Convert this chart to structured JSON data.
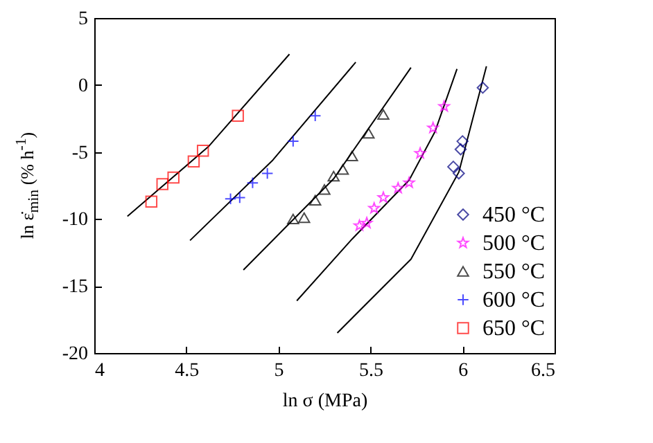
{
  "chart_data": {
    "type": "scatter",
    "xlabel": "ln σ (MPa)",
    "ylabel": "ln ε̇$_{min}$ (% h$^{-1}$)",
    "xlim": [
      4,
      6.5
    ],
    "xticks": [
      {
        "value": 4,
        "label": "4"
      },
      4.5,
      {
        "value": 5,
        "label": "5"
      },
      5.5,
      {
        "value": 6,
        "label": "6"
      },
      6.5
    ],
    "ylim": [
      -20,
      5
    ],
    "yticks": [
      -20,
      -15,
      -10,
      -5,
      0,
      5
    ],
    "grid": false,
    "legend": "bottom right",
    "series": [
      {
        "name": "450 °C",
        "color": "#000080",
        "marker": "diamond",
        "x": [
          6.11,
          6.0,
          5.99,
          5.95,
          5.98
        ],
        "values": [
          -0.2,
          -4.2,
          -4.8,
          -6.1,
          -6.6
        ]
      },
      {
        "name": "500 °C",
        "color": "#ff00ff",
        "marker": "star",
        "x": [
          5.9,
          5.84,
          5.77,
          5.71,
          5.65,
          5.57,
          5.52,
          5.48,
          5.44
        ],
        "values": [
          -1.6,
          -3.2,
          -5.1,
          -7.3,
          -7.7,
          -8.4,
          -9.2,
          -10.3,
          -10.5
        ]
      },
      {
        "name": "550 °C",
        "color": "#000000",
        "marker": "triangle",
        "x": [
          5.08,
          5.14,
          5.2,
          5.25,
          5.3,
          5.35,
          5.4,
          5.49,
          5.57
        ],
        "values": [
          -10.0,
          -9.9,
          -8.6,
          -7.8,
          -6.8,
          -6.3,
          -5.3,
          -3.6,
          -2.2
        ]
      },
      {
        "name": "600 °C",
        "color": "#0000ff",
        "marker": "cross",
        "x": [
          4.74,
          4.79,
          4.86,
          4.94,
          5.08,
          5.2
        ],
        "values": [
          -8.5,
          -8.4,
          -7.3,
          -6.6,
          -4.2,
          -2.3
        ]
      },
      {
        "name": "650 °C",
        "color": "#ff0000",
        "marker": "square",
        "x": [
          4.31,
          4.37,
          4.43,
          4.54,
          4.59,
          4.78
        ],
        "values": [
          -8.7,
          -7.4,
          -6.9,
          -5.7,
          -4.9,
          -2.3
        ]
      },
      {
        "type": "line",
        "color": "#000000",
        "x": [
          5.32,
          5.72,
          5.98,
          6.13
        ],
        "values": [
          -18.5,
          -13.0,
          -6.5,
          1.4
        ]
      },
      {
        "type": "line",
        "color": "#000000",
        "x": [
          5.1,
          5.4,
          5.71,
          5.85,
          5.97
        ],
        "values": [
          -16.1,
          -11.5,
          -7.1,
          -3.5,
          1.2
        ]
      },
      {
        "type": "line",
        "color": "#000000",
        "x": [
          4.81,
          5.3,
          5.72
        ],
        "values": [
          -13.8,
          -7.0,
          1.3
        ]
      },
      {
        "type": "line",
        "color": "#000000",
        "x": [
          4.52,
          4.97,
          5.42
        ],
        "values": [
          -11.6,
          -5.6,
          1.7
        ]
      },
      {
        "type": "line",
        "color": "#000000",
        "x": [
          4.18,
          4.62,
          5.06
        ],
        "values": [
          -9.8,
          -4.6,
          2.3
        ]
      }
    ]
  }
}
